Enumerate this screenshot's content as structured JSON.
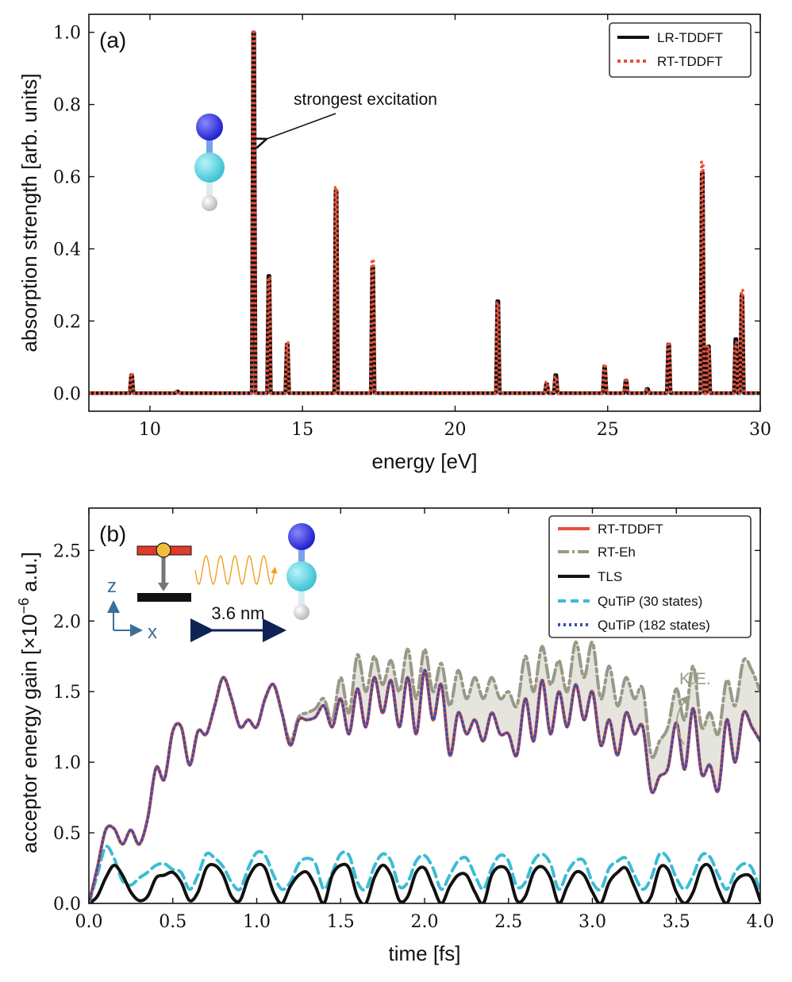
{
  "chart_data": [
    {
      "panel": "(a)",
      "type": "line",
      "xlabel": "energy [eV]",
      "ylabel": "absorption strength [arb. units]",
      "xlim": [
        8,
        30
      ],
      "ylim": [
        -0.05,
        1.05
      ],
      "xticks": [
        10,
        15,
        20,
        25,
        30
      ],
      "yticks": [
        0.0,
        0.2,
        0.4,
        0.6,
        0.8,
        1.0
      ],
      "xtick_labels": [
        "10",
        "15",
        "20",
        "25",
        "30"
      ],
      "ytick_labels": [
        "0.0",
        "0.2",
        "0.4",
        "0.6",
        "0.8",
        "1.0"
      ],
      "legend_position": "top-right",
      "annotation": "strongest excitation",
      "series": [
        {
          "name": "LR-TDDFT",
          "color": "#111111",
          "style": "solid",
          "peaks_x": [
            9.4,
            10.9,
            13.4,
            13.9,
            14.5,
            16.1,
            17.3,
            21.4,
            23.0,
            23.3,
            24.9,
            25.6,
            26.3,
            27.0,
            28.1,
            28.3,
            29.2,
            29.4
          ],
          "peaks_y": [
            0.05,
            0.005,
            1.0,
            0.325,
            0.135,
            0.56,
            0.35,
            0.255,
            0.025,
            0.05,
            0.07,
            0.035,
            0.012,
            0.135,
            0.61,
            0.13,
            0.15,
            0.27
          ]
        },
        {
          "name": "RT-TDDFT",
          "color": "#e8503a",
          "style": "dotted",
          "peaks_x": [
            9.4,
            10.9,
            13.4,
            13.9,
            14.5,
            16.1,
            17.3,
            21.4,
            23.0,
            23.3,
            24.9,
            25.6,
            26.3,
            27.0,
            28.1,
            28.3,
            29.2,
            29.4
          ],
          "peaks_y": [
            0.055,
            0.005,
            1.0,
            0.32,
            0.14,
            0.57,
            0.37,
            0.25,
            0.03,
            0.045,
            0.08,
            0.04,
            0.01,
            0.14,
            0.64,
            0.13,
            0.14,
            0.285
          ]
        }
      ]
    },
    {
      "panel": "(b)",
      "type": "line",
      "xlabel": "time [fs]",
      "ylabel_main": "acceptor energy gain [×10",
      "ylabel_exp": "−6",
      "ylabel_unit": " a.u.]",
      "xlim": [
        0,
        4
      ],
      "ylim": [
        0,
        2.8
      ],
      "xticks": [
        0.0,
        0.5,
        1.0,
        1.5,
        2.0,
        2.5,
        3.0,
        3.5,
        4.0
      ],
      "yticks": [
        0.0,
        0.5,
        1.0,
        1.5,
        2.0,
        2.5
      ],
      "xtick_labels": [
        "0.0",
        "0.5",
        "1.0",
        "1.5",
        "2.0",
        "2.5",
        "3.0",
        "3.5",
        "4.0"
      ],
      "ytick_labels": [
        "0.0",
        "0.5",
        "1.0",
        "1.5",
        "2.0",
        "2.5"
      ],
      "legend_position": "top-right",
      "annotations": {
        "ke": "K.E.",
        "distance": "3.6 nm",
        "axis_z": "z",
        "axis_x": "x"
      },
      "x": [
        0.0,
        0.05,
        0.1,
        0.15,
        0.2,
        0.25,
        0.3,
        0.35,
        0.4,
        0.45,
        0.5,
        0.55,
        0.6,
        0.65,
        0.7,
        0.75,
        0.8,
        0.85,
        0.9,
        0.95,
        1.0,
        1.05,
        1.1,
        1.15,
        1.2,
        1.25,
        1.3,
        1.35,
        1.4,
        1.45,
        1.5,
        1.55,
        1.6,
        1.65,
        1.7,
        1.75,
        1.8,
        1.85,
        1.9,
        1.95,
        2.0,
        2.05,
        2.1,
        2.15,
        2.2,
        2.25,
        2.3,
        2.35,
        2.4,
        2.45,
        2.5,
        2.55,
        2.6,
        2.65,
        2.7,
        2.75,
        2.8,
        2.85,
        2.9,
        2.95,
        3.0,
        3.05,
        3.1,
        3.15,
        3.2,
        3.25,
        3.3,
        3.35,
        3.4,
        3.45,
        3.5,
        3.55,
        3.6,
        3.65,
        3.7,
        3.75,
        3.8,
        3.85,
        3.9,
        3.95,
        4.0
      ],
      "series": [
        {
          "name": "RT-TDDFT",
          "color": "#e8503a",
          "style": "solid",
          "values": [
            0.0,
            0.25,
            0.52,
            0.53,
            0.42,
            0.52,
            0.42,
            0.6,
            0.96,
            0.88,
            1.22,
            1.25,
            0.98,
            1.22,
            1.2,
            1.4,
            1.6,
            1.45,
            1.25,
            1.3,
            1.25,
            1.45,
            1.55,
            1.35,
            1.12,
            1.3,
            1.3,
            1.32,
            1.4,
            1.25,
            1.45,
            1.2,
            1.52,
            1.25,
            1.6,
            1.35,
            1.58,
            1.25,
            1.6,
            1.2,
            1.65,
            1.3,
            1.55,
            1.05,
            1.35,
            1.2,
            1.3,
            1.15,
            1.35,
            1.2,
            1.2,
            1.05,
            1.45,
            1.15,
            1.58,
            1.2,
            1.5,
            1.25,
            1.55,
            1.3,
            1.5,
            1.12,
            1.3,
            1.05,
            1.35,
            1.2,
            1.25,
            0.8,
            0.9,
            0.96,
            1.28,
            0.95,
            1.38,
            0.92,
            0.98,
            0.8,
            1.3,
            1.0,
            1.35,
            1.25,
            1.15
          ]
        },
        {
          "name": "RT-Eh",
          "color": "#999988",
          "style": "dashdot",
          "values": [
            0.0,
            0.25,
            0.52,
            0.53,
            0.42,
            0.52,
            0.42,
            0.6,
            0.96,
            0.88,
            1.22,
            1.25,
            0.98,
            1.22,
            1.2,
            1.4,
            1.6,
            1.45,
            1.25,
            1.3,
            1.25,
            1.45,
            1.55,
            1.35,
            1.15,
            1.32,
            1.35,
            1.38,
            1.45,
            1.3,
            1.6,
            1.35,
            1.76,
            1.5,
            1.75,
            1.55,
            1.72,
            1.5,
            1.8,
            1.45,
            1.8,
            1.5,
            1.7,
            1.4,
            1.65,
            1.45,
            1.6,
            1.45,
            1.6,
            1.45,
            1.5,
            1.4,
            1.75,
            1.5,
            1.82,
            1.55,
            1.72,
            1.5,
            1.85,
            1.6,
            1.85,
            1.45,
            1.68,
            1.4,
            1.6,
            1.45,
            1.52,
            1.05,
            1.15,
            1.25,
            1.52,
            1.3,
            1.68,
            1.25,
            1.35,
            1.2,
            1.58,
            1.4,
            1.72,
            1.65,
            1.5
          ]
        },
        {
          "name": "TLS",
          "color": "#111111",
          "style": "solid",
          "values": [
            0.0,
            0.05,
            0.18,
            0.27,
            0.2,
            0.08,
            0.02,
            0.05,
            0.18,
            0.2,
            0.22,
            0.15,
            0.02,
            0.08,
            0.25,
            0.27,
            0.2,
            0.05,
            0.02,
            0.18,
            0.27,
            0.25,
            0.08,
            0.0,
            0.12,
            0.2,
            0.22,
            0.12,
            0.0,
            0.2,
            0.27,
            0.25,
            0.05,
            0.0,
            0.18,
            0.27,
            0.2,
            0.02,
            0.05,
            0.22,
            0.25,
            0.12,
            0.0,
            0.12,
            0.2,
            0.2,
            0.08,
            0.0,
            0.2,
            0.26,
            0.22,
            0.02,
            0.05,
            0.22,
            0.26,
            0.18,
            0.0,
            0.12,
            0.22,
            0.2,
            0.08,
            0.0,
            0.15,
            0.22,
            0.25,
            0.12,
            0.0,
            0.05,
            0.25,
            0.24,
            0.08,
            0.0,
            0.08,
            0.25,
            0.26,
            0.1,
            0.0,
            0.15,
            0.2,
            0.18,
            0.02
          ]
        },
        {
          "name": "QuTiP (30 states)",
          "color": "#3bbcd6",
          "style": "dashed",
          "values": [
            0.0,
            0.2,
            0.4,
            0.32,
            0.16,
            0.13,
            0.18,
            0.22,
            0.27,
            0.28,
            0.24,
            0.22,
            0.1,
            0.2,
            0.35,
            0.32,
            0.26,
            0.15,
            0.1,
            0.25,
            0.36,
            0.34,
            0.2,
            0.1,
            0.15,
            0.28,
            0.32,
            0.28,
            0.1,
            0.22,
            0.35,
            0.34,
            0.15,
            0.1,
            0.26,
            0.35,
            0.3,
            0.12,
            0.15,
            0.3,
            0.34,
            0.25,
            0.1,
            0.2,
            0.3,
            0.32,
            0.2,
            0.1,
            0.25,
            0.34,
            0.3,
            0.12,
            0.15,
            0.3,
            0.35,
            0.28,
            0.1,
            0.22,
            0.3,
            0.3,
            0.15,
            0.1,
            0.25,
            0.3,
            0.32,
            0.2,
            0.1,
            0.18,
            0.35,
            0.32,
            0.18,
            0.1,
            0.2,
            0.34,
            0.33,
            0.2,
            0.1,
            0.22,
            0.28,
            0.25,
            0.08
          ]
        },
        {
          "name": "QuTiP (182 states)",
          "color": "#3b4fa8",
          "style": "dotted",
          "values": [
            0.0,
            0.25,
            0.52,
            0.53,
            0.42,
            0.52,
            0.42,
            0.6,
            0.96,
            0.88,
            1.22,
            1.25,
            0.98,
            1.22,
            1.2,
            1.4,
            1.6,
            1.45,
            1.25,
            1.3,
            1.25,
            1.45,
            1.55,
            1.35,
            1.12,
            1.3,
            1.3,
            1.32,
            1.4,
            1.25,
            1.45,
            1.2,
            1.52,
            1.25,
            1.6,
            1.35,
            1.58,
            1.25,
            1.6,
            1.2,
            1.65,
            1.3,
            1.55,
            1.05,
            1.35,
            1.2,
            1.3,
            1.15,
            1.35,
            1.2,
            1.2,
            1.05,
            1.45,
            1.15,
            1.58,
            1.2,
            1.5,
            1.25,
            1.55,
            1.3,
            1.5,
            1.12,
            1.3,
            1.05,
            1.35,
            1.2,
            1.25,
            0.8,
            0.9,
            0.96,
            1.28,
            0.95,
            1.38,
            0.92,
            0.98,
            0.8,
            1.3,
            1.0,
            1.35,
            1.25,
            1.15
          ]
        }
      ]
    }
  ]
}
